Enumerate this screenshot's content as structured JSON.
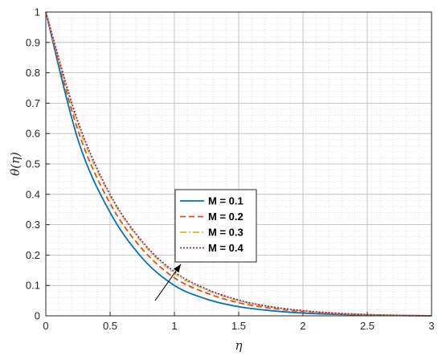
{
  "chart_data": {
    "type": "line",
    "xlabel": "η",
    "ylabel": "θ(η)",
    "xlim": [
      0,
      3
    ],
    "ylim": [
      0,
      1
    ],
    "x_ticks": [
      "0",
      "0.5",
      "1",
      "1.5",
      "2",
      "2.5",
      "3"
    ],
    "y_ticks": [
      "0",
      "0.1",
      "0.2",
      "0.3",
      "0.4",
      "0.5",
      "0.6",
      "0.7",
      "0.8",
      "0.9",
      "1"
    ],
    "grid": true,
    "minor_grid": true,
    "legend_position": "center",
    "x": [
      0,
      0.25,
      0.5,
      0.75,
      1.0,
      1.25,
      1.5,
      1.75,
      2.0,
      2.25,
      2.5,
      2.75,
      3.0
    ],
    "series": [
      {
        "name": "M = 0.1",
        "color": "#0072BD",
        "dash": "solid",
        "values": [
          1.0,
          0.58,
          0.34,
          0.19,
          0.1,
          0.055,
          0.03,
          0.017,
          0.009,
          0.005,
          0.0025,
          0.001,
          0.0
        ]
      },
      {
        "name": "M = 0.2",
        "color": "#D95319",
        "dash": "dashed",
        "values": [
          1.0,
          0.61,
          0.37,
          0.22,
          0.125,
          0.075,
          0.043,
          0.025,
          0.014,
          0.007,
          0.003,
          0.001,
          0.0
        ]
      },
      {
        "name": "M = 0.3",
        "color": "#EDB120",
        "dash": "dashdot",
        "values": [
          1.0,
          0.63,
          0.395,
          0.24,
          0.14,
          0.085,
          0.05,
          0.029,
          0.016,
          0.008,
          0.004,
          0.0015,
          0.0
        ]
      },
      {
        "name": "M = 0.4",
        "color": "#7E2F8E",
        "dash": "dotted",
        "values": [
          1.0,
          0.64,
          0.4,
          0.245,
          0.145,
          0.088,
          0.052,
          0.03,
          0.017,
          0.009,
          0.004,
          0.0015,
          0.0
        ]
      }
    ],
    "annotation": {
      "type": "arrow",
      "from": [
        0.85,
        0.05
      ],
      "to": [
        1.05,
        0.17
      ]
    }
  }
}
